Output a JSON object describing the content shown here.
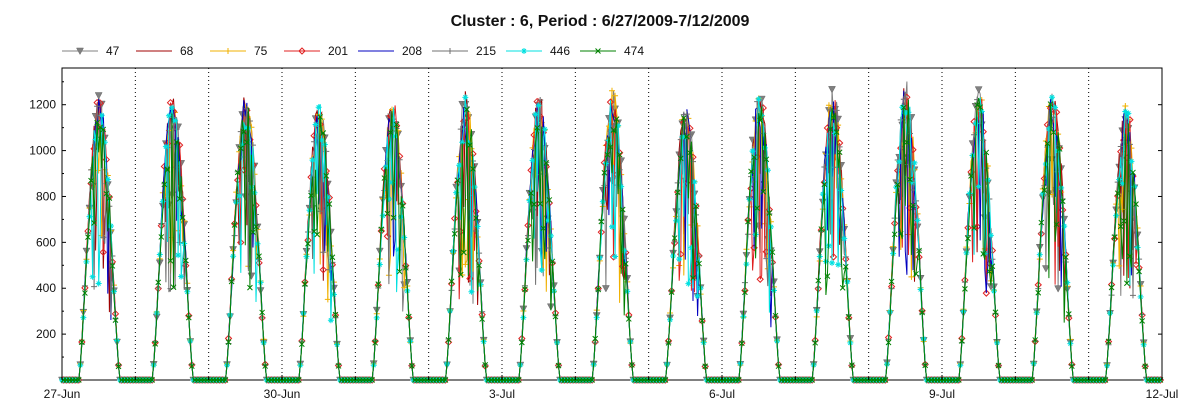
{
  "chart_data": {
    "type": "line",
    "title": "Cluster : 6, Period : 6/27/2009-7/12/2009",
    "xlabel": "",
    "ylabel": "",
    "x_range_days": [
      "2009-06-27",
      "2009-07-12"
    ],
    "ylim": [
      0,
      1360
    ],
    "yticks": [
      200,
      400,
      600,
      800,
      1000,
      1200
    ],
    "xtick_labels": [
      "27-Jun",
      "30-Jun",
      "3-Jul",
      "6-Jul",
      "9-Jul",
      "12-Jul"
    ],
    "xtick_dates": [
      "2009-06-27",
      "2009-06-30",
      "2009-07-03",
      "2009-07-06",
      "2009-07-09",
      "2009-07-12"
    ],
    "grid": "dotted vertical lines at day boundaries",
    "legend_position": "top",
    "daily_peak_approx": [
      {
        "date": "2009-06-27",
        "peak": 1230
      },
      {
        "date": "2009-06-28",
        "peak": 1240
      },
      {
        "date": "2009-06-29",
        "peak": 1250
      },
      {
        "date": "2009-06-30",
        "peak": 1220
      },
      {
        "date": "2009-07-01",
        "peak": 1220
      },
      {
        "date": "2009-07-02",
        "peak": 1250
      },
      {
        "date": "2009-07-03",
        "peak": 1240
      },
      {
        "date": "2009-07-04",
        "peak": 1260
      },
      {
        "date": "2009-07-05",
        "peak": 1200
      },
      {
        "date": "2009-07-06",
        "peak": 1250
      },
      {
        "date": "2009-07-07",
        "peak": 1260
      },
      {
        "date": "2009-07-08",
        "peak": 1290
      },
      {
        "date": "2009-07-09",
        "peak": 1260
      },
      {
        "date": "2009-07-10",
        "peak": 1250
      },
      {
        "date": "2009-07-11",
        "peak": 1200
      }
    ],
    "series": [
      {
        "name": "47",
        "color": "#808080",
        "marker": "triangle-down"
      },
      {
        "name": "68",
        "color": "#a00000",
        "marker": "none"
      },
      {
        "name": "75",
        "color": "#f0b000",
        "marker": "plus"
      },
      {
        "name": "201",
        "color": "#e02020",
        "marker": "diamond"
      },
      {
        "name": "208",
        "color": "#0000c0",
        "marker": "none"
      },
      {
        "name": "215",
        "color": "#707070",
        "marker": "plus"
      },
      {
        "name": "446",
        "color": "#00e0e0",
        "marker": "star"
      },
      {
        "name": "474",
        "color": "#008000",
        "marker": "cross"
      }
    ]
  }
}
